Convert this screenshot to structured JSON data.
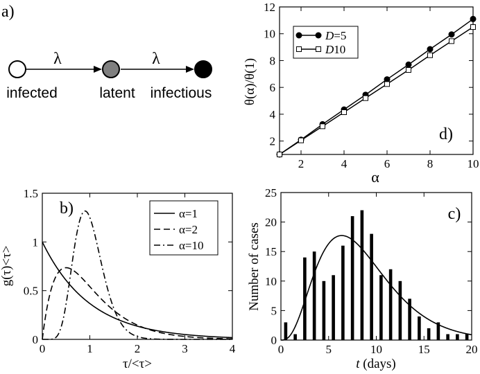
{
  "panel_a": {
    "label": "a)",
    "nodes": [
      {
        "name": "infected",
        "fill": "#ffffff"
      },
      {
        "name": "latent",
        "fill": "#808080"
      },
      {
        "name": "infectious",
        "fill": "#000000"
      }
    ],
    "rate_labels": [
      "λ",
      "λ"
    ]
  },
  "chart_data": [
    {
      "id": "d",
      "panel_label": "d)",
      "type": "line",
      "xlabel": "α",
      "ylabel": "θ(α)/θ(1)",
      "xlim": [
        1,
        10
      ],
      "ylim": [
        1,
        12
      ],
      "xticks": [
        2,
        4,
        6,
        8,
        10
      ],
      "yticks": [
        2,
        4,
        6,
        8,
        10,
        12
      ],
      "x": [
        1,
        2,
        3,
        4,
        5,
        6,
        7,
        8,
        9,
        10
      ],
      "series": [
        {
          "name": "D=5",
          "name_italic": "D",
          "name_rest": "=5",
          "marker": "filled-circle",
          "values": [
            1.0,
            2.1,
            3.25,
            4.35,
            5.45,
            6.6,
            7.7,
            8.85,
            9.95,
            11.1
          ]
        },
        {
          "name": "D10",
          "name_italic": "D",
          "name_rest": "10",
          "marker": "open-square",
          "values": [
            1.0,
            2.05,
            3.1,
            4.15,
            5.2,
            6.25,
            7.3,
            8.4,
            9.45,
            10.5
          ]
        }
      ],
      "legend_position": "top-left"
    },
    {
      "id": "b",
      "panel_label": "b)",
      "type": "line",
      "xlabel": "τ/<τ>",
      "ylabel": "g(τ)<τ>",
      "xlim": [
        0,
        4
      ],
      "ylim": [
        0,
        1.5
      ],
      "xticks": [
        0,
        1,
        2,
        3,
        4
      ],
      "yticks": [
        0,
        0.5,
        1,
        1.5
      ],
      "ytick_labels": [
        "0",
        "0.5",
        "1",
        "1.5"
      ],
      "series": [
        {
          "name": "α=1",
          "alpha": 1,
          "dash": "none"
        },
        {
          "name": "α=2",
          "alpha": 2,
          "dash": "9,5"
        },
        {
          "name": "α=10",
          "alpha": 10,
          "dash": "9,4,2,4"
        }
      ],
      "legend_position": "top-right"
    },
    {
      "id": "c",
      "panel_label": "c)",
      "type": "bar",
      "xlabel_italic": "t",
      "xlabel_rest": " (days)",
      "ylabel": "Number of cases",
      "xlim": [
        0,
        20
      ],
      "ylim": [
        0,
        25
      ],
      "xticks": [
        0,
        5,
        10,
        15,
        20
      ],
      "yticks": [
        0,
        5,
        10,
        15,
        20,
        25
      ],
      "bars": [
        {
          "x": 0.5,
          "value": 3
        },
        {
          "x": 1.5,
          "value": 1
        },
        {
          "x": 2.5,
          "value": 14
        },
        {
          "x": 3.5,
          "value": 15
        },
        {
          "x": 4.5,
          "value": 10
        },
        {
          "x": 5.5,
          "value": 11
        },
        {
          "x": 6.5,
          "value": 16
        },
        {
          "x": 7.5,
          "value": 21
        },
        {
          "x": 8.5,
          "value": 22
        },
        {
          "x": 9.5,
          "value": 18
        },
        {
          "x": 10.5,
          "value": 11
        },
        {
          "x": 11.5,
          "value": 12
        },
        {
          "x": 12.5,
          "value": 10
        },
        {
          "x": 13.5,
          "value": 7
        },
        {
          "x": 14.5,
          "value": 4
        },
        {
          "x": 15.5,
          "value": 2
        },
        {
          "x": 16.5,
          "value": 3
        },
        {
          "x": 17.5,
          "value": 1
        },
        {
          "x": 18.5,
          "value": 1
        },
        {
          "x": 19.5,
          "value": 1
        }
      ],
      "fit_curve": {
        "scale": 168,
        "shape": 4,
        "mean": 8.5
      }
    }
  ]
}
